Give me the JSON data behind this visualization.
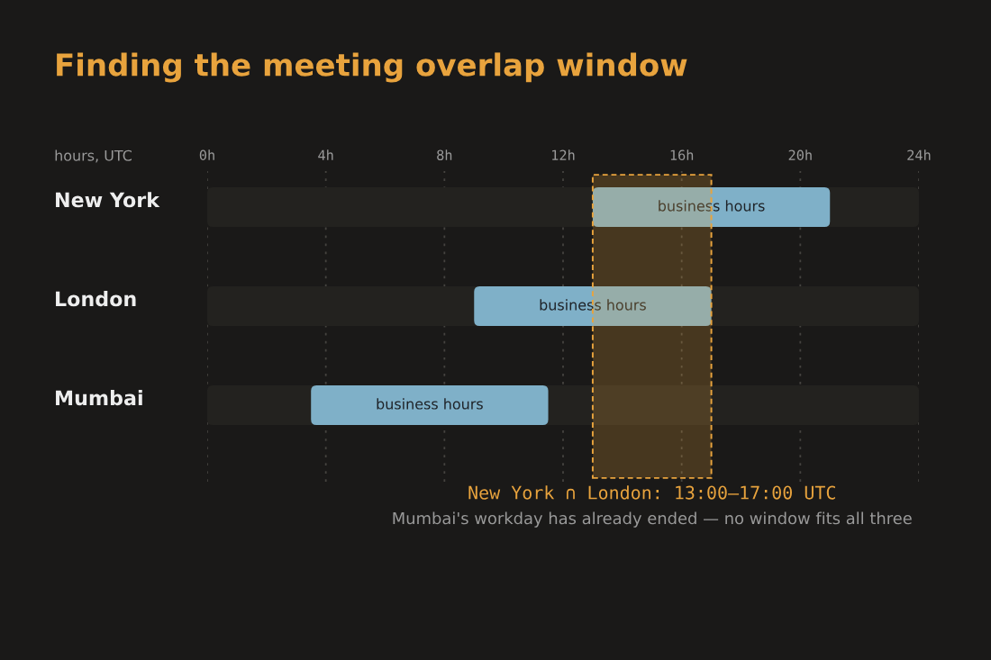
{
  "chart_data": {
    "type": "bar",
    "orientation": "horizontal",
    "title": "Finding the meeting overlap window",
    "xlabel": "hours, UTC",
    "categories": [
      "New York",
      "London",
      "Mumbai"
    ],
    "series": [
      {
        "color": "#23221f",
        "base": [
          0,
          0,
          0
        ],
        "values": [
          24,
          24,
          24
        ]
      },
      {
        "color": "#7fb0c8",
        "base": [
          13,
          9,
          3.5
        ],
        "values": [
          8,
          8,
          8
        ],
        "value_labels": [
          "business hours",
          "business hours",
          "business hours"
        ]
      }
    ],
    "xlim": [
      0,
      24
    ],
    "xticks": [
      {
        "value": 0,
        "label": "0h"
      },
      {
        "value": 4,
        "label": "4h"
      },
      {
        "value": 8,
        "label": "8h"
      },
      {
        "value": 12,
        "label": "12h"
      },
      {
        "value": 16,
        "label": "16h"
      },
      {
        "value": 20,
        "label": "20h"
      },
      {
        "value": 24,
        "label": "24h"
      }
    ],
    "grid": "x",
    "bands": [
      {
        "axis": "x",
        "from": 13,
        "to": 17,
        "label": "New York ∩ London: 13:00–17:00 UTC",
        "color": "#e8a33d"
      }
    ],
    "annotations": [
      "Mumbai's workday has already ended — no window fits all three"
    ]
  }
}
